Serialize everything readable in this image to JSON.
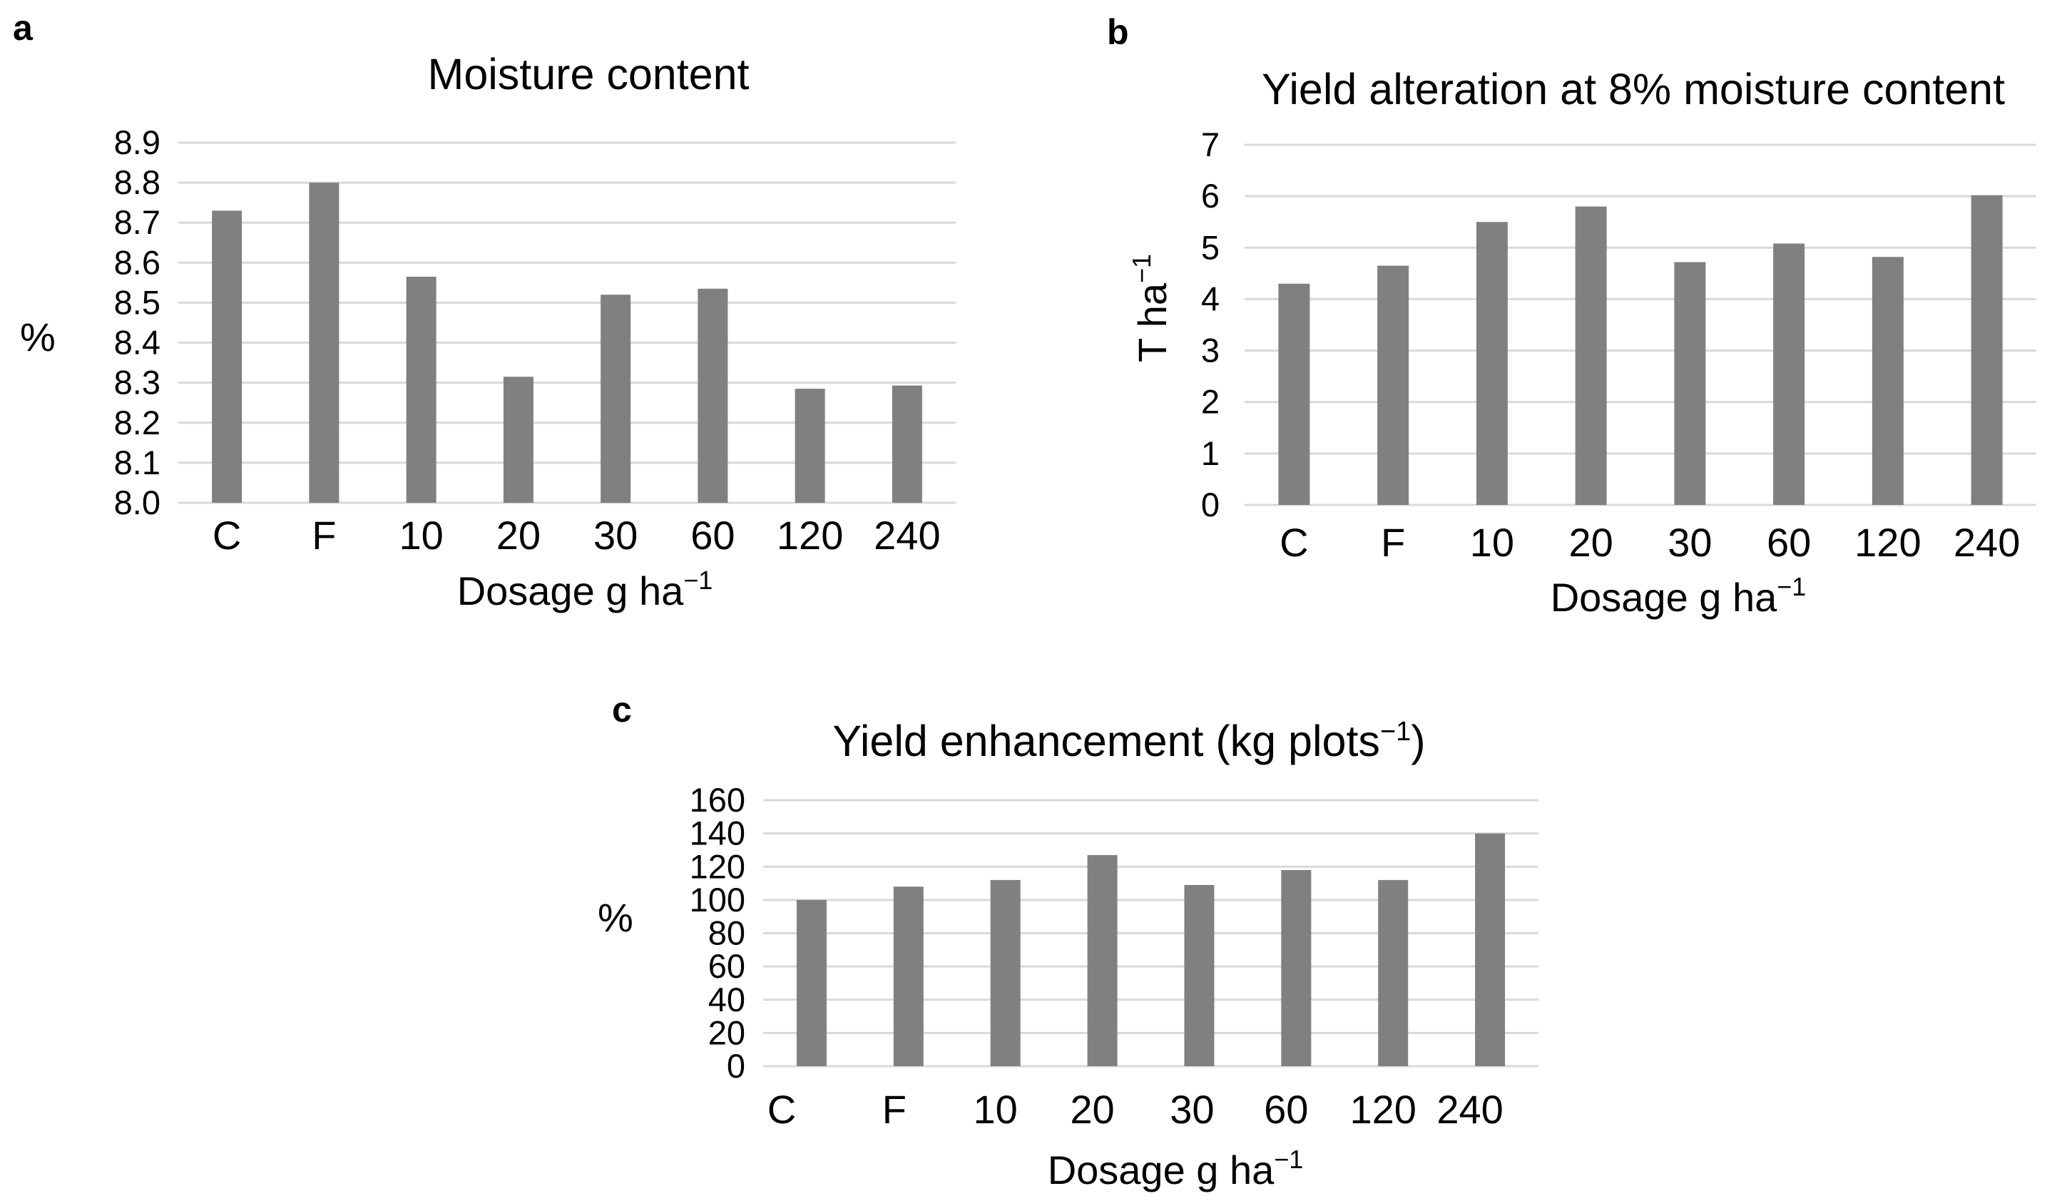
{
  "chart_data": [
    {
      "panel": "a",
      "type": "bar",
      "title": "Moisture content",
      "xlabel": "Dosage g ha",
      "xlabel_sup": "−1",
      "ylabel": "%",
      "ylabel_sup": "",
      "categories": [
        "C",
        "F",
        "10",
        "20",
        "30",
        "60",
        "120",
        "240"
      ],
      "values": [
        8.73,
        8.8,
        8.565,
        8.315,
        8.52,
        8.535,
        8.285,
        8.293
      ],
      "ylim": [
        8.0,
        8.9
      ],
      "yticks": [
        "8.0",
        "8.1",
        "8.2",
        "8.3",
        "8.4",
        "8.5",
        "8.6",
        "8.7",
        "8.8",
        "8.9"
      ],
      "grid": true,
      "bar_color": "#808080"
    },
    {
      "panel": "b",
      "type": "bar",
      "title": "Yield alteration at 8% moisture content",
      "xlabel": "Dosage g ha",
      "xlabel_sup": "−1",
      "ylabel": "T ha",
      "ylabel_sup": "−1",
      "categories": [
        "C",
        "F",
        "10",
        "20",
        "30",
        "60",
        "120",
        "240"
      ],
      "values": [
        4.3,
        4.65,
        5.5,
        5.8,
        4.72,
        5.08,
        4.82,
        6.02
      ],
      "ylim": [
        0,
        7
      ],
      "yticks": [
        "0",
        "1",
        "2",
        "3",
        "4",
        "5",
        "6",
        "7"
      ],
      "grid": true,
      "bar_color": "#808080"
    },
    {
      "panel": "c",
      "type": "bar",
      "title": "Yield enhancement (kg plots",
      "title_sup": "−1",
      "title_end": ")",
      "xlabel": "Dosage g ha",
      "xlabel_sup": "−1",
      "ylabel": "%",
      "ylabel_sup": "",
      "categories": [
        "C",
        "F",
        "10",
        "20",
        "30",
        "60",
        "120",
        "240"
      ],
      "values": [
        100,
        108,
        112,
        127,
        109,
        118,
        112,
        140
      ],
      "ylim": [
        0,
        160
      ],
      "yticks": [
        "0",
        "20",
        "40",
        "60",
        "80",
        "100",
        "120",
        "140",
        "160"
      ],
      "grid": true,
      "bar_color": "#808080"
    }
  ],
  "colors": {
    "gridline": "#d9d9d9",
    "bar": "#808080"
  }
}
